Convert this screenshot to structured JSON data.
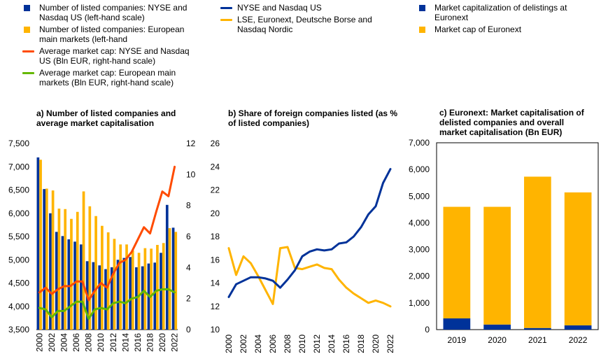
{
  "colors": {
    "blue": "#003299",
    "yellow": "#FFB400",
    "orange": "#FF4B00",
    "green": "#65B800"
  },
  "legends": {
    "a": [
      {
        "label": "Number of listed companies: NYSE and Nasdaq US (left-hand scale)",
        "kind": "box",
        "color": "#003299"
      },
      {
        "label": "Number of listed companies: European main markets (left-hand",
        "kind": "box",
        "color": "#FFB400"
      },
      {
        "label": "Average market cap: NYSE and Nasdaq US (Bln EUR, right-hand scale)",
        "kind": "line",
        "color": "#FF4B00"
      },
      {
        "label": "Average market cap: European main markets (Bln EUR, right-hand scale)",
        "kind": "line",
        "color": "#65B800"
      }
    ],
    "b": [
      {
        "label": "NYSE and Nasdaq US",
        "kind": "line",
        "color": "#003299"
      },
      {
        "label": "LSE, Euronext, Deutsche Borse and Nasdaq Nordic",
        "kind": "line",
        "color": "#FFB400"
      }
    ],
    "c": [
      {
        "label": "Market capitalization of delistings at Euronext",
        "kind": "box",
        "color": "#003299"
      },
      {
        "label": "Market cap of Euronext",
        "kind": "box",
        "color": "#FFB400"
      }
    ]
  },
  "chart_data": [
    {
      "id": "a",
      "type": "bar",
      "title": "a) Number of listed companies and average market capitalisation",
      "x": [
        2000,
        2001,
        2002,
        2003,
        2004,
        2005,
        2006,
        2007,
        2008,
        2009,
        2010,
        2011,
        2012,
        2013,
        2014,
        2015,
        2016,
        2017,
        2018,
        2019,
        2020,
        2021,
        2022
      ],
      "x_tick_labels": [
        "2000",
        "2002",
        "2004",
        "2006",
        "2008",
        "2010",
        "2012",
        "2014",
        "2016",
        "2018",
        "2020",
        "2022"
      ],
      "y_left_lim": [
        3500,
        7500
      ],
      "y_left_ticks": [
        "3,500",
        "4,000",
        "4,500",
        "5,000",
        "5,500",
        "6,000",
        "6,500",
        "7,000",
        "7,500"
      ],
      "y_right_lim": [
        0,
        12
      ],
      "y_right_ticks": [
        "0",
        "2",
        "4",
        "6",
        "8",
        "10",
        "12"
      ],
      "series": [
        {
          "name": "Number of listed companies: NYSE and Nasdaq US (left-hand scale)",
          "kind": "bar",
          "axis": "left",
          "color": "#003299",
          "values": [
            7200,
            6520,
            6000,
            5600,
            5510,
            5440,
            5390,
            5330,
            4970,
            4950,
            4880,
            4800,
            4840,
            5000,
            5040,
            5060,
            4840,
            4860,
            4920,
            4940,
            5150,
            6180,
            5690
          ]
        },
        {
          "name": "Number of listed companies: European main markets (left-hand",
          "kind": "bar",
          "axis": "left",
          "color": "#FFB400",
          "values": [
            7150,
            6530,
            6490,
            6100,
            6090,
            5880,
            6030,
            6470,
            6150,
            5940,
            5730,
            5590,
            5450,
            5330,
            5330,
            5200,
            5150,
            5250,
            5240,
            5320,
            5360,
            5680,
            5600
          ]
        },
        {
          "name": "Average market cap: NYSE and Nasdaq US (Bln EUR, right-hand scale)",
          "kind": "line",
          "axis": "right",
          "color": "#FF4B00",
          "values": [
            2.4,
            2.7,
            2.3,
            2.6,
            2.8,
            2.8,
            3.1,
            3.1,
            1.9,
            2.5,
            3.0,
            2.7,
            3.6,
            4.3,
            4.5,
            5.0,
            5.8,
            6.6,
            6.2,
            7.6,
            8.9,
            8.6,
            10.5
          ]
        },
        {
          "name": "Average market cap: European main markets (Bln EUR, right-hand scale)",
          "kind": "line",
          "axis": "right",
          "color": "#65B800",
          "values": [
            1.4,
            1.3,
            0.8,
            1.2,
            1.2,
            1.5,
            1.8,
            1.8,
            0.7,
            1.3,
            1.4,
            1.3,
            1.7,
            1.8,
            1.7,
            2.0,
            2.1,
            2.5,
            2.1,
            2.5,
            2.6,
            2.6,
            2.4
          ]
        }
      ]
    },
    {
      "id": "b",
      "type": "line",
      "title": "b) Share of foreign companies listed (as % of listed companies)",
      "x": [
        2000,
        2001,
        2002,
        2003,
        2004,
        2005,
        2006,
        2007,
        2008,
        2009,
        2010,
        2011,
        2012,
        2013,
        2014,
        2015,
        2016,
        2017,
        2018,
        2019,
        2020,
        2021,
        2022
      ],
      "x_tick_labels": [
        "2000",
        "2002",
        "2004",
        "2006",
        "2008",
        "2010",
        "2012",
        "2014",
        "2016",
        "2018",
        "2020",
        "2022"
      ],
      "ylim": [
        10,
        26
      ],
      "y_ticks": [
        "10",
        "12",
        "14",
        "16",
        "18",
        "20",
        "22",
        "24",
        "26"
      ],
      "series": [
        {
          "name": "NYSE and Nasdaq US",
          "color": "#003299",
          "values": [
            12.8,
            13.9,
            14.2,
            14.5,
            14.5,
            14.4,
            14.2,
            13.6,
            14.3,
            15.1,
            16.3,
            16.7,
            16.9,
            16.8,
            16.9,
            17.4,
            17.5,
            18.0,
            18.8,
            19.9,
            20.6,
            22.6,
            23.8
          ]
        },
        {
          "name": "LSE, Euronext, Deutsche Borse and Nasdaq Nordic",
          "color": "#FFB400",
          "values": [
            17.0,
            14.7,
            16.3,
            15.7,
            14.6,
            13.4,
            12.2,
            17.0,
            17.1,
            15.3,
            15.2,
            15.4,
            15.6,
            15.3,
            15.2,
            14.3,
            13.6,
            13.1,
            12.7,
            12.3,
            12.5,
            12.3,
            12.0
          ]
        }
      ]
    },
    {
      "id": "c",
      "type": "bar",
      "stacked": true,
      "title": "c) Euronext: Market capitalisation of delisted companies and overall market capitalisation (Bn EUR)",
      "categories": [
        "2019",
        "2020",
        "2021",
        "2022"
      ],
      "ylim": [
        0,
        7000
      ],
      "y_ticks": [
        "0",
        "1,000",
        "2,000",
        "3,000",
        "4,000",
        "5,000",
        "6,000",
        "7,000"
      ],
      "series": [
        {
          "name": "Market capitalization of delistings at Euronext",
          "color": "#003299",
          "values": [
            420,
            190,
            60,
            160
          ]
        },
        {
          "name": "Market cap of Euronext",
          "color": "#FFB400",
          "values": [
            4180,
            4410,
            5670,
            4980
          ]
        }
      ]
    }
  ]
}
